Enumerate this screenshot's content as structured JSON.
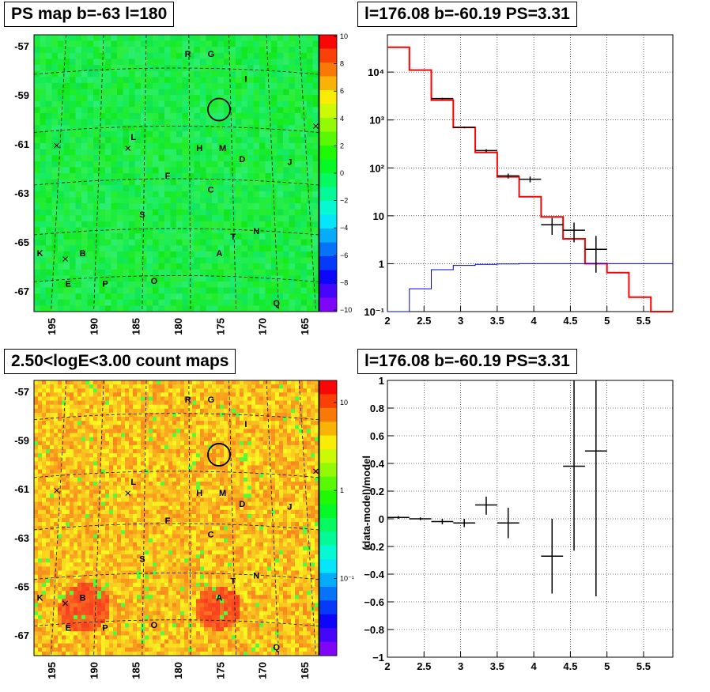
{
  "panels": {
    "ps_map": {
      "title": "PS map b=-63 l=180"
    },
    "spectrum": {
      "title": "l=176.08 b=-60.19 PS=3.31"
    },
    "count_map": {
      "title": "2.50<logE<3.00 count maps"
    },
    "residual": {
      "title": "l=176.08 b=-60.19 PS=3.31"
    }
  },
  "chart_data": [
    {
      "id": "ps_map",
      "type": "heatmap",
      "title": "PS map b=-63 l=180",
      "x_ticks": [
        "195",
        "190",
        "185",
        "180",
        "175",
        "170",
        "165"
      ],
      "y_ticks": [
        "-57",
        "-59",
        "-61",
        "-63",
        "-65",
        "-67"
      ],
      "colorbar": {
        "ticks": [
          "10",
          "8",
          "6",
          "4",
          "2",
          "0",
          "−2",
          "−4",
          "−6",
          "−8",
          "−10"
        ],
        "range": [
          -10,
          10
        ],
        "scale": "linear"
      },
      "dominant_color": "#22ee44",
      "source_marker": {
        "l": 174.8,
        "b": -59.8
      },
      "labels": [
        "R",
        "G",
        "I",
        "L",
        "H",
        "M",
        "D",
        "J",
        "F",
        "C",
        "S",
        "T",
        "N",
        "K",
        "B",
        "A",
        "E",
        "P",
        "O",
        "Q"
      ]
    },
    {
      "id": "spectrum",
      "type": "line",
      "title": "l=176.08 b=-60.19 PS=3.31",
      "x_ticks": [
        "2",
        "2.5",
        "3",
        "3.5",
        "4",
        "4.5",
        "5",
        "5.5"
      ],
      "y_ticks": [
        "10⁻¹",
        "1",
        "10",
        "10²",
        "10³",
        "10⁴"
      ],
      "xlim": [
        2,
        5.9
      ],
      "ylim": [
        0.1,
        60000
      ],
      "yscale": "log",
      "grid": true,
      "series": [
        {
          "color": "#ff0000",
          "bins": [
            2.0,
            2.3,
            2.6,
            2.9,
            3.2,
            3.5,
            3.8,
            4.1,
            4.4,
            4.7,
            5.0,
            5.3,
            5.6,
            5.9
          ],
          "values": [
            33000,
            11000,
            2600,
            700,
            210,
            65,
            25,
            9.5,
            3.3,
            1.0,
            0.65,
            0.2,
            0.08
          ]
        },
        {
          "color": "#0000ee",
          "bins": [
            2.0,
            2.3,
            2.6,
            2.9,
            3.2,
            3.5,
            3.8,
            4.1,
            4.4,
            4.7,
            5.0,
            5.3,
            5.6,
            5.9
          ],
          "values": [
            0.1,
            0.3,
            0.75,
            0.92,
            0.97,
            0.99,
            1.0,
            1.0,
            1.0,
            1.0,
            1.0,
            1.0,
            1.0
          ]
        },
        {
          "color": "#000000",
          "points": [
            {
              "x": 2.75,
              "y": 2800,
              "xerr": 0.15,
              "ylo": 2700,
              "yhi": 2900
            },
            {
              "x": 3.05,
              "y": 700,
              "xerr": 0.15,
              "ylo": 670,
              "yhi": 730
            },
            {
              "x": 3.35,
              "y": 230,
              "xerr": 0.15,
              "ylo": 215,
              "yhi": 245
            },
            {
              "x": 3.65,
              "y": 68,
              "xerr": 0.15,
              "ylo": 60,
              "yhi": 76
            },
            {
              "x": 3.95,
              "y": 58,
              "xerr": 0.15,
              "ylo": 50,
              "yhi": 66
            },
            {
              "x": 4.25,
              "y": 6.5,
              "xerr": 0.15,
              "ylo": 4.0,
              "yhi": 9.0
            },
            {
              "x": 4.55,
              "y": 5.0,
              "xerr": 0.15,
              "ylo": 2.8,
              "yhi": 7.2
            },
            {
              "x": 4.85,
              "y": 2.0,
              "xerr": 0.15,
              "ylo": 0.65,
              "yhi": 3.8
            }
          ]
        }
      ]
    },
    {
      "id": "count_map",
      "type": "heatmap",
      "title": "2.50<logE<3.00 count maps",
      "x_ticks": [
        "195",
        "190",
        "185",
        "180",
        "175",
        "170",
        "165"
      ],
      "y_ticks": [
        "-57",
        "-59",
        "-61",
        "-63",
        "-65",
        "-67"
      ],
      "colorbar": {
        "ticks": [
          "10",
          "1",
          "10⁻¹"
        ],
        "scale": "log"
      },
      "dominant_color": "#ff9922",
      "source_marker": {
        "l": 174.8,
        "b": -59.8
      },
      "labels": [
        "R",
        "G",
        "I",
        "L",
        "H",
        "M",
        "D",
        "J",
        "F",
        "C",
        "S",
        "T",
        "N",
        "K",
        "B",
        "A",
        "E",
        "P",
        "O",
        "Q"
      ]
    },
    {
      "id": "residual",
      "type": "scatter",
      "title": "l=176.08 b=-60.19 PS=3.31",
      "ylabel": "(data-model)/model",
      "x_ticks": [
        "2",
        "2.5",
        "3",
        "3.5",
        "4",
        "4.5",
        "5",
        "5.5"
      ],
      "y_ticks": [
        "−1",
        "−0.8",
        "−0.6",
        "−0.4",
        "−0.2",
        "0",
        "0.2",
        "0.4",
        "0.6",
        "0.8",
        "1"
      ],
      "xlim": [
        2,
        5.9
      ],
      "ylim": [
        -1,
        1
      ],
      "grid": true,
      "points": [
        {
          "x": 2.15,
          "y": 0.01,
          "xerr": 0.15,
          "ylo": 0.0,
          "yhi": 0.02
        },
        {
          "x": 2.45,
          "y": 0.0,
          "xerr": 0.15,
          "ylo": -0.01,
          "yhi": 0.01
        },
        {
          "x": 2.75,
          "y": -0.02,
          "xerr": 0.15,
          "ylo": -0.04,
          "yhi": 0.0
        },
        {
          "x": 3.05,
          "y": -0.03,
          "xerr": 0.15,
          "ylo": -0.06,
          "yhi": 0.0
        },
        {
          "x": 3.35,
          "y": 0.1,
          "xerr": 0.15,
          "ylo": 0.03,
          "yhi": 0.16
        },
        {
          "x": 3.65,
          "y": -0.03,
          "xerr": 0.15,
          "ylo": -0.14,
          "yhi": 0.08
        },
        {
          "x": 4.25,
          "y": -0.27,
          "xerr": 0.15,
          "ylo": -0.54,
          "yhi": 0.0
        },
        {
          "x": 4.55,
          "y": 0.38,
          "xerr": 0.15,
          "ylo": -0.23,
          "yhi": 1.0
        },
        {
          "x": 4.85,
          "y": 0.49,
          "xerr": 0.15,
          "ylo": -0.56,
          "yhi": 1.0
        }
      ]
    }
  ]
}
